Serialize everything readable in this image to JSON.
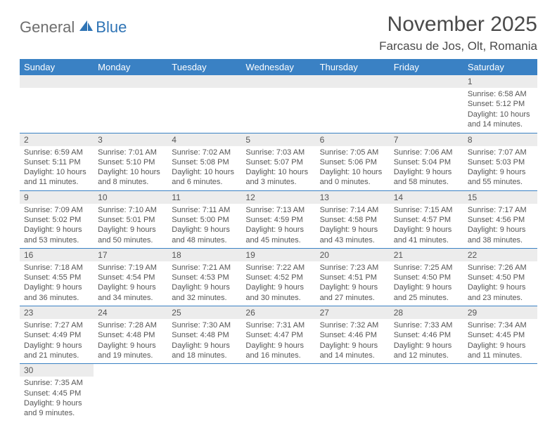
{
  "logo": {
    "part1": "General",
    "part2": "Blue"
  },
  "title": "November 2025",
  "location": "Farcasu de Jos, Olt, Romania",
  "colors": {
    "header_bg": "#3a81c4",
    "header_text": "#ffffff",
    "strip_bg": "#ececec",
    "row_border": "#3a81c4",
    "text": "#555555",
    "logo_gray": "#6e6e6e",
    "logo_blue": "#2f74b5"
  },
  "weekdays": [
    "Sunday",
    "Monday",
    "Tuesday",
    "Wednesday",
    "Thursday",
    "Friday",
    "Saturday"
  ],
  "days": {
    "1": {
      "sunrise": "6:58 AM",
      "sunset": "5:12 PM",
      "daylight": "10 hours and 14 minutes."
    },
    "2": {
      "sunrise": "6:59 AM",
      "sunset": "5:11 PM",
      "daylight": "10 hours and 11 minutes."
    },
    "3": {
      "sunrise": "7:01 AM",
      "sunset": "5:10 PM",
      "daylight": "10 hours and 8 minutes."
    },
    "4": {
      "sunrise": "7:02 AM",
      "sunset": "5:08 PM",
      "daylight": "10 hours and 6 minutes."
    },
    "5": {
      "sunrise": "7:03 AM",
      "sunset": "5:07 PM",
      "daylight": "10 hours and 3 minutes."
    },
    "6": {
      "sunrise": "7:05 AM",
      "sunset": "5:06 PM",
      "daylight": "10 hours and 0 minutes."
    },
    "7": {
      "sunrise": "7:06 AM",
      "sunset": "5:04 PM",
      "daylight": "9 hours and 58 minutes."
    },
    "8": {
      "sunrise": "7:07 AM",
      "sunset": "5:03 PM",
      "daylight": "9 hours and 55 minutes."
    },
    "9": {
      "sunrise": "7:09 AM",
      "sunset": "5:02 PM",
      "daylight": "9 hours and 53 minutes."
    },
    "10": {
      "sunrise": "7:10 AM",
      "sunset": "5:01 PM",
      "daylight": "9 hours and 50 minutes."
    },
    "11": {
      "sunrise": "7:11 AM",
      "sunset": "5:00 PM",
      "daylight": "9 hours and 48 minutes."
    },
    "12": {
      "sunrise": "7:13 AM",
      "sunset": "4:59 PM",
      "daylight": "9 hours and 45 minutes."
    },
    "13": {
      "sunrise": "7:14 AM",
      "sunset": "4:58 PM",
      "daylight": "9 hours and 43 minutes."
    },
    "14": {
      "sunrise": "7:15 AM",
      "sunset": "4:57 PM",
      "daylight": "9 hours and 41 minutes."
    },
    "15": {
      "sunrise": "7:17 AM",
      "sunset": "4:56 PM",
      "daylight": "9 hours and 38 minutes."
    },
    "16": {
      "sunrise": "7:18 AM",
      "sunset": "4:55 PM",
      "daylight": "9 hours and 36 minutes."
    },
    "17": {
      "sunrise": "7:19 AM",
      "sunset": "4:54 PM",
      "daylight": "9 hours and 34 minutes."
    },
    "18": {
      "sunrise": "7:21 AM",
      "sunset": "4:53 PM",
      "daylight": "9 hours and 32 minutes."
    },
    "19": {
      "sunrise": "7:22 AM",
      "sunset": "4:52 PM",
      "daylight": "9 hours and 30 minutes."
    },
    "20": {
      "sunrise": "7:23 AM",
      "sunset": "4:51 PM",
      "daylight": "9 hours and 27 minutes."
    },
    "21": {
      "sunrise": "7:25 AM",
      "sunset": "4:50 PM",
      "daylight": "9 hours and 25 minutes."
    },
    "22": {
      "sunrise": "7:26 AM",
      "sunset": "4:50 PM",
      "daylight": "9 hours and 23 minutes."
    },
    "23": {
      "sunrise": "7:27 AM",
      "sunset": "4:49 PM",
      "daylight": "9 hours and 21 minutes."
    },
    "24": {
      "sunrise": "7:28 AM",
      "sunset": "4:48 PM",
      "daylight": "9 hours and 19 minutes."
    },
    "25": {
      "sunrise": "7:30 AM",
      "sunset": "4:48 PM",
      "daylight": "9 hours and 18 minutes."
    },
    "26": {
      "sunrise": "7:31 AM",
      "sunset": "4:47 PM",
      "daylight": "9 hours and 16 minutes."
    },
    "27": {
      "sunrise": "7:32 AM",
      "sunset": "4:46 PM",
      "daylight": "9 hours and 14 minutes."
    },
    "28": {
      "sunrise": "7:33 AM",
      "sunset": "4:46 PM",
      "daylight": "9 hours and 12 minutes."
    },
    "29": {
      "sunrise": "7:34 AM",
      "sunset": "4:45 PM",
      "daylight": "9 hours and 11 minutes."
    },
    "30": {
      "sunrise": "7:35 AM",
      "sunset": "4:45 PM",
      "daylight": "9 hours and 9 minutes."
    }
  },
  "grid": [
    [
      null,
      null,
      null,
      null,
      null,
      null,
      "1"
    ],
    [
      "2",
      "3",
      "4",
      "5",
      "6",
      "7",
      "8"
    ],
    [
      "9",
      "10",
      "11",
      "12",
      "13",
      "14",
      "15"
    ],
    [
      "16",
      "17",
      "18",
      "19",
      "20",
      "21",
      "22"
    ],
    [
      "23",
      "24",
      "25",
      "26",
      "27",
      "28",
      "29"
    ],
    [
      "30",
      null,
      null,
      null,
      null,
      null,
      null
    ]
  ],
  "labels": {
    "sunrise": "Sunrise: ",
    "sunset": "Sunset: ",
    "daylight": "Daylight: "
  }
}
